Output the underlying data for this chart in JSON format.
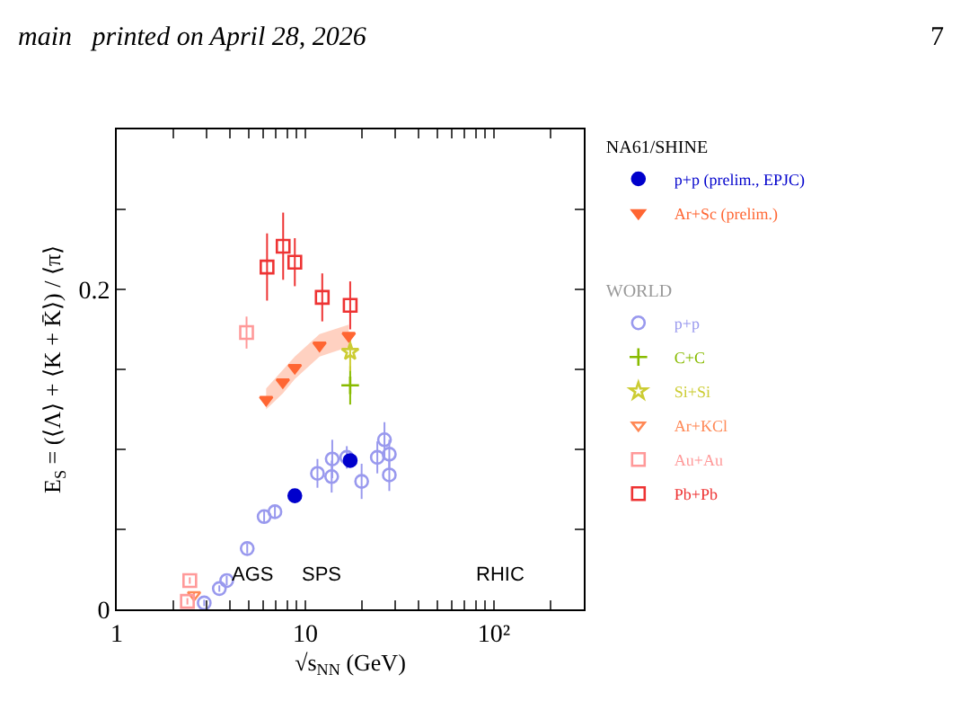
{
  "chart_data": {
    "type": "scatter",
    "xlabel": "√s$_{NN}$ (GeV)",
    "ylabel": "E$_{S}$ = (⟨Λ⟩ + ⟨K + K̄⟩) / ⟨π⟩",
    "annotations": [
      "NA61/SHINE",
      "WORLD",
      "AGS",
      "SPS",
      "RHIC",
      "main   printed on April 28, 2026",
      "7"
    ],
    "log": "x",
    "xlim": [
      1,
      300
    ],
    "xticks": [
      1,
      {
        "value": 2,
        "label": null
      },
      {
        "value": 3,
        "label": null
      },
      {
        "value": 4,
        "label": null
      },
      {
        "value": 5,
        "label": null
      },
      {
        "value": 6,
        "label": null
      },
      {
        "value": 7,
        "label": null
      },
      {
        "value": 8,
        "label": null
      },
      {
        "value": 9,
        "label": null
      },
      10,
      {
        "value": 20,
        "label": null
      },
      {
        "value": 30,
        "label": null
      },
      {
        "value": 40,
        "label": null
      },
      {
        "value": 50,
        "label": null
      },
      {
        "value": 60,
        "label": null
      },
      {
        "value": 70,
        "label": null
      },
      {
        "value": 80,
        "label": null
      },
      {
        "value": 90,
        "label": null
      },
      {
        "value": 100,
        "label": "10²"
      },
      {
        "value": 200,
        "label": null
      }
    ],
    "ylim": [
      0,
      0.3
    ],
    "yticks": [
      0,
      {
        "value": 0.05,
        "label": null
      },
      {
        "value": 0.1,
        "label": null
      },
      {
        "value": 0.15,
        "label": null
      },
      0.2,
      {
        "value": 0.25,
        "label": null
      }
    ],
    "legend": "right",
    "series": [
      {
        "name": "p+p (prelim., EPJC)",
        "color": "#0000cc",
        "marker": "circle",
        "x": [
          8.8,
          17.3
        ],
        "values": [
          0.071,
          0.093
        ],
        "errors": [
          0.003,
          0.004
        ]
      },
      {
        "name": "Ar+Sc (prelim.)",
        "color": "#ff6633",
        "marker": "triangle",
        "x": [
          6.2,
          7.6,
          8.8,
          11.9,
          17.0
        ],
        "values": [
          0.131,
          0.142,
          0.151,
          0.165,
          0.171
        ],
        "lower": [
          0.125,
          0.135,
          0.144,
          0.158,
          0.164
        ],
        "upper": [
          0.138,
          0.149,
          0.158,
          0.172,
          0.178
        ]
      },
      {
        "name": "p+p",
        "color": "#9999ee",
        "marker": "circle",
        "x": [
          2.91,
          3.5,
          3.83,
          4.92,
          6.05,
          6.9,
          11.6,
          13.9,
          13.8,
          16.6,
          19.9,
          24.1,
          26.3,
          27.9,
          27.9
        ],
        "values": [
          0.004,
          0.013,
          0.018,
          0.038,
          0.058,
          0.061,
          0.085,
          0.094,
          0.083,
          0.095,
          0.08,
          0.095,
          0.106,
          0.097,
          0.084
        ],
        "errors": [
          0.002,
          0.002,
          0.003,
          0.003,
          0.004,
          0.004,
          0.009,
          0.012,
          0.01,
          0.007,
          0.011,
          0.01,
          0.011,
          0.009,
          0.01
        ]
      },
      {
        "name": "C+C",
        "color": "#88bb00",
        "marker": "cross",
        "x": [
          17.3
        ],
        "values": [
          0.14
        ],
        "errors": [
          0.012
        ]
      },
      {
        "name": "Si+Si",
        "color": "#cccc33",
        "marker": "star",
        "x": [
          17.3
        ],
        "values": [
          0.161
        ],
        "errors": [
          0.012
        ]
      },
      {
        "name": "Ar+KCl",
        "color": "#ff8855",
        "marker": "triangle",
        "x": [
          2.57
        ],
        "values": [
          0.009
        ],
        "errors": [
          0.002
        ]
      },
      {
        "name": "Au+Au",
        "color": "#ff9999",
        "marker": "square",
        "x": [
          2.37,
          2.44,
          4.88
        ],
        "values": [
          0.005,
          0.018,
          0.173
        ],
        "errors": [
          0.002,
          0.002,
          0.01
        ]
      },
      {
        "name": "Pb+Pb",
        "color": "#ee3333",
        "marker": "square",
        "x": [
          6.27,
          7.63,
          8.8,
          12.3,
          17.3
        ],
        "values": [
          0.214,
          0.227,
          0.217,
          0.195,
          0.19
        ],
        "errors": [
          0.021,
          0.021,
          0.015,
          0.015,
          0.015
        ]
      }
    ]
  }
}
